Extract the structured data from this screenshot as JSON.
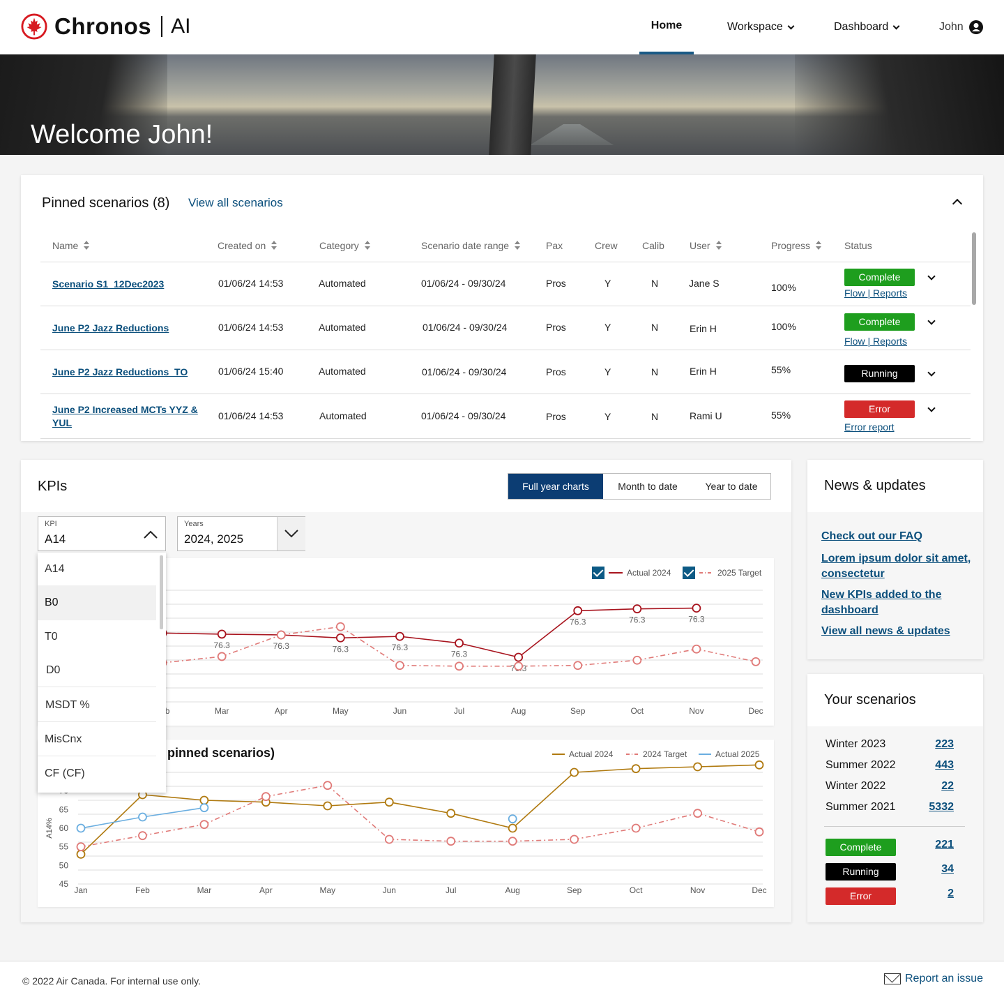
{
  "header": {
    "brand": "Chronos",
    "brand_suffix": "AI",
    "nav": {
      "home": "Home",
      "workspace": "Workspace",
      "dashboard": "Dashboard",
      "user": "John"
    }
  },
  "hero": {
    "title": "Welcome John!"
  },
  "pinned": {
    "title": "Pinned scenarios (8)",
    "view_all": "View all scenarios",
    "columns": [
      "Name",
      "Created on",
      "Category",
      "Scenario date range",
      "Pax",
      "Crew",
      "Calib",
      "User",
      "Progress",
      "Status"
    ],
    "rows": [
      {
        "name": "Scenario S1_12Dec2023",
        "created": "01/06/24 14:53",
        "category": "Automated",
        "range": "01/06/24 - 09/30/24",
        "pax": "Pros",
        "crew": "Y",
        "calib": "N",
        "user": "Jane S",
        "progress": "100%",
        "status": "Complete",
        "sub": "Flow | Reports"
      },
      {
        "name": "June P2 Jazz Reductions",
        "created": "01/06/24 14:53",
        "category": "Automated",
        "range": "01/06/24 - 09/30/24",
        "pax": "Pros",
        "crew": "Y",
        "calib": "N",
        "user": "Erin H",
        "progress": "100%",
        "status": "Complete",
        "sub": "Flow | Reports"
      },
      {
        "name": "June P2 Jazz Reductions_TO",
        "created": "01/06/24 15:40",
        "category": "Automated",
        "range": "01/06/24 - 09/30/24",
        "pax": "Pros",
        "crew": "Y",
        "calib": "N",
        "user": "Erin H",
        "progress": "55%",
        "status": "Running",
        "sub": ""
      },
      {
        "name": "June P2 Increased MCTs YYZ & YUL",
        "created": "01/06/24 14:53",
        "category": "Automated",
        "range": "01/06/24 - 09/30/24",
        "pax": "Pros",
        "crew": "Y",
        "calib": "N",
        "user": "Rami U",
        "progress": "55%",
        "status": "Error",
        "sub": "Error report"
      }
    ]
  },
  "kpis": {
    "title": "KPIs",
    "tabs": [
      "Full year charts",
      "Month to date",
      "Year to date"
    ],
    "kpi_select": {
      "label": "KPI",
      "value": "A14"
    },
    "years_select": {
      "label": "Years",
      "value": "2024, 2025"
    },
    "kpi_options": [
      "A14",
      "B0",
      "T0",
      "D0",
      "MSDT %",
      "MisCnx",
      "CF (CF)"
    ],
    "chart2_title_visible": "pinned scenarios)"
  },
  "chart_data": [
    {
      "type": "line",
      "categories": [
        "Jan",
        "Feb",
        "Mar",
        "Apr",
        "May",
        "Jun",
        "Jul",
        "Aug",
        "Sep",
        "Oct",
        "Nov",
        "Dec"
      ],
      "series": [
        {
          "name": "Actual 2024",
          "color": "#a8141e",
          "style": "solid",
          "values": [
            null,
            63.5,
            63.2,
            63,
            62.2,
            62.6,
            60.8,
            57,
            69.5,
            70,
            70.2,
            null
          ],
          "labels": [
            null,
            null,
            "76.3",
            "76.3",
            "76.3",
            "76.3",
            "76.3",
            "76.3",
            "76.3",
            "76.3",
            "76.3",
            null
          ]
        },
        {
          "name": "2025 Target",
          "color": "#e07a78",
          "style": "dash-dot",
          "values": [
            null,
            55.5,
            57.2,
            63,
            65.2,
            54.8,
            54.6,
            54.6,
            54.8,
            56.2,
            59.2,
            55.8
          ]
        }
      ],
      "legend": "top-right",
      "grid": true
    },
    {
      "type": "line",
      "categories": [
        "Jan",
        "Feb",
        "Mar",
        "Apr",
        "May",
        "Jun",
        "Jul",
        "Aug",
        "Sep",
        "Oct",
        "Nov",
        "Dec"
      ],
      "ylabel": "A14%",
      "yticks": [
        45,
        50,
        55,
        60,
        65,
        70,
        75
      ],
      "ylim": [
        45,
        75
      ],
      "series": [
        {
          "name": "Actual 2024",
          "color": "#b07a10",
          "style": "solid",
          "values": [
            53,
            69,
            67.5,
            67,
            66,
            67,
            64,
            60,
            75,
            76,
            76.5,
            77
          ]
        },
        {
          "name": "2024 Target",
          "color": "#e07a78",
          "style": "dash-dot",
          "values": [
            55,
            58,
            61,
            68.5,
            71.5,
            57,
            56.5,
            56.5,
            57,
            60,
            64,
            59
          ]
        },
        {
          "name": "Actual 2025",
          "color": "#6aaee0",
          "style": "solid",
          "values": [
            60,
            63,
            65.5,
            null,
            null,
            null,
            null,
            62.5,
            null,
            null,
            null,
            null
          ]
        }
      ],
      "legend": "top-right",
      "grid": true
    }
  ],
  "news": {
    "title": "News & updates",
    "links": [
      "Check out our FAQ",
      "Lorem ipsum dolor sit amet, consectetur",
      "New KPIs added to the dashboard",
      "View all news & updates"
    ]
  },
  "your_scenarios": {
    "title": "Your scenarios",
    "seasons": [
      {
        "label": "Winter 2023",
        "count": "223"
      },
      {
        "label": "Summer 2022",
        "count": "443"
      },
      {
        "label": "Winter 2022",
        "count": "22"
      },
      {
        "label": "Summer 2021",
        "count": "5332"
      }
    ],
    "statuses": [
      {
        "label": "Complete",
        "count": "221"
      },
      {
        "label": "Running",
        "count": "34"
      },
      {
        "label": "Error",
        "count": "2"
      }
    ]
  },
  "footer": {
    "copyright": "© 2022 Air Canada. For internal use only.",
    "report": "Report an issue"
  },
  "colors": {
    "primary_navy": "#0c3d73",
    "link": "#0b4f7c",
    "complete": "#1e9e1e",
    "running": "#000000",
    "error": "#d42a2a"
  }
}
